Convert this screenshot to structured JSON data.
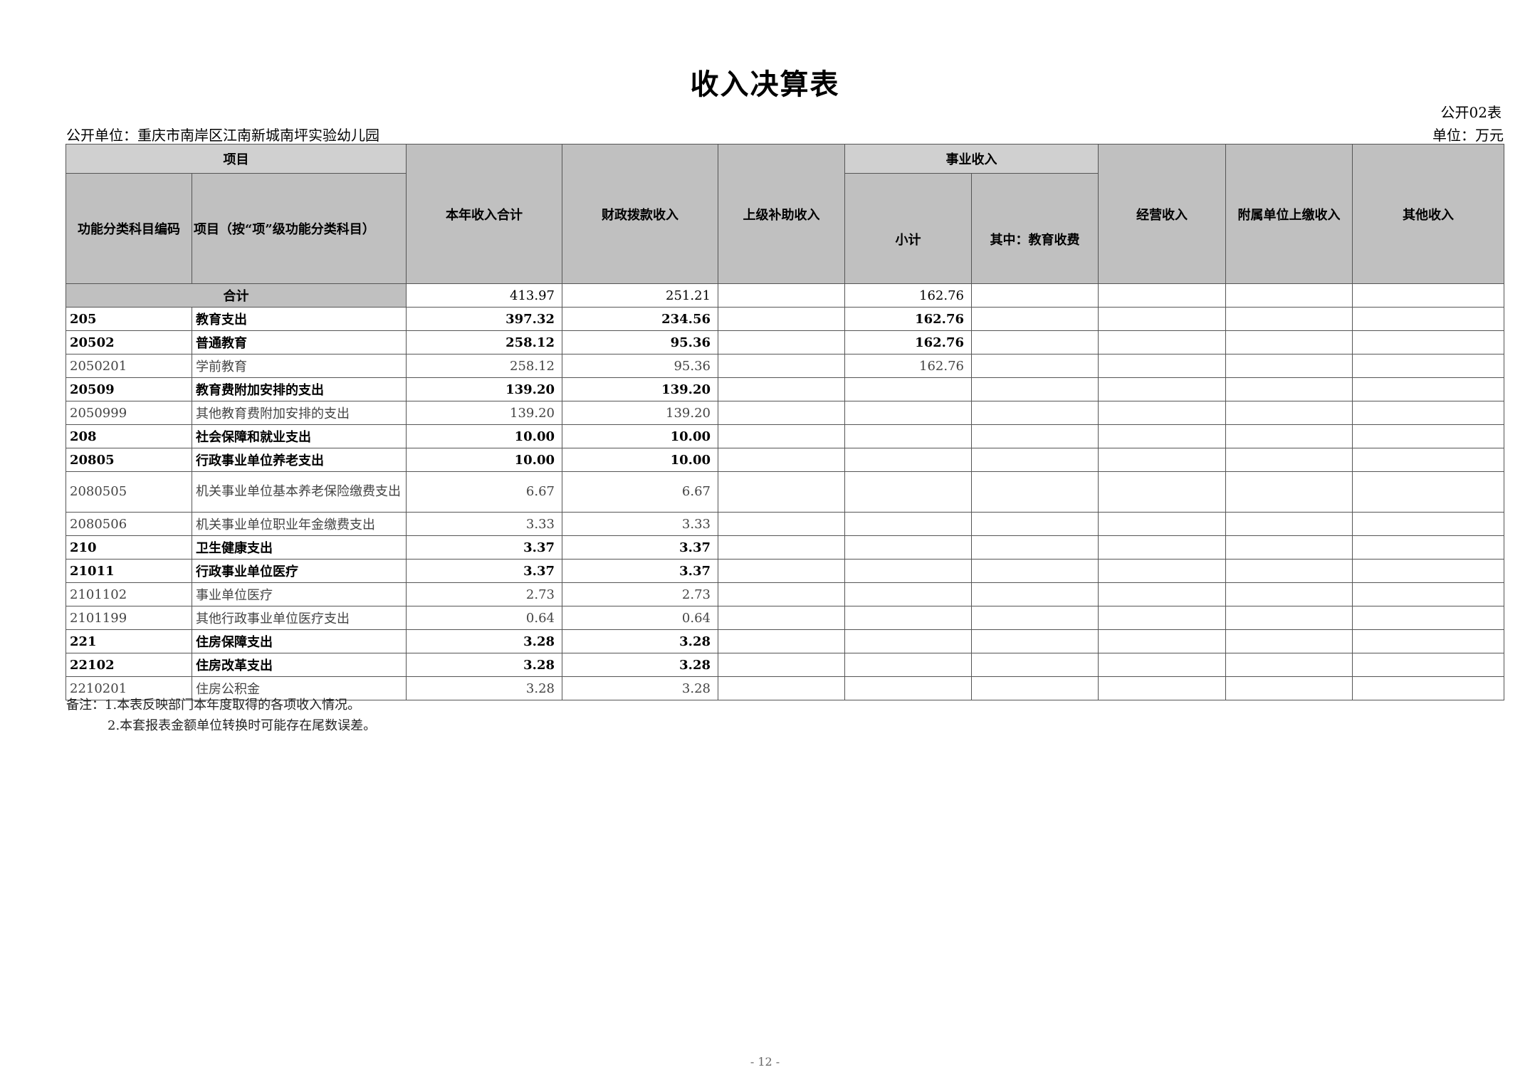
{
  "title": "收入决算表",
  "form_no": "公开02表",
  "org": "公开单位：重庆市南岸区江南新城南坪实验幼儿园",
  "unit": "单位：万元",
  "headers": {
    "item_group": "项目",
    "code": "功能分类科目编码",
    "item_name": "项目（按“项”级功能分类科目）",
    "total": "本年收入合计",
    "fiscal": "财政拨款收入",
    "superior": "上级补助收入",
    "business_group": "事业收入",
    "subtotal": "小计",
    "edu_fee": "其中：教育收费",
    "operating": "经营收入",
    "affiliated": "附属单位上缴收入",
    "other": "其他收入"
  },
  "total_row": {
    "label": "合计",
    "total": "413.97",
    "fiscal": "251.21",
    "superior": "",
    "subtotal": "162.76",
    "edu_fee": "",
    "operating": "",
    "affiliated": "",
    "other": ""
  },
  "rows": [
    {
      "code": "205",
      "name": "教育支出",
      "total": "397.32",
      "fiscal": "234.56",
      "subtotal": "162.76",
      "bold": true
    },
    {
      "code": "20502",
      "name": "普通教育",
      "total": "258.12",
      "fiscal": "95.36",
      "subtotal": "162.76",
      "bold": true
    },
    {
      "code": "2050201",
      "name": "学前教育",
      "total": "258.12",
      "fiscal": "95.36",
      "subtotal": "162.76",
      "bold": false
    },
    {
      "code": "20509",
      "name": "教育费附加安排的支出",
      "total": "139.20",
      "fiscal": "139.20",
      "subtotal": "",
      "bold": true
    },
    {
      "code": "2050999",
      "name": "其他教育费附加安排的支出",
      "total": "139.20",
      "fiscal": "139.20",
      "subtotal": "",
      "bold": false
    },
    {
      "code": "208",
      "name": "社会保障和就业支出",
      "total": "10.00",
      "fiscal": "10.00",
      "subtotal": "",
      "bold": true
    },
    {
      "code": "20805",
      "name": "行政事业单位养老支出",
      "total": "10.00",
      "fiscal": "10.00",
      "subtotal": "",
      "bold": true
    },
    {
      "code": "2080505",
      "name": "机关事业单位基本养老保险缴费支出",
      "total": "6.67",
      "fiscal": "6.67",
      "subtotal": "",
      "bold": false
    },
    {
      "code": "2080506",
      "name": "机关事业单位职业年金缴费支出",
      "total": "3.33",
      "fiscal": "3.33",
      "subtotal": "",
      "bold": false
    },
    {
      "code": "210",
      "name": "卫生健康支出",
      "total": "3.37",
      "fiscal": "3.37",
      "subtotal": "",
      "bold": true
    },
    {
      "code": "21011",
      "name": "行政事业单位医疗",
      "total": "3.37",
      "fiscal": "3.37",
      "subtotal": "",
      "bold": true
    },
    {
      "code": "2101102",
      "name": "事业单位医疗",
      "total": "2.73",
      "fiscal": "2.73",
      "subtotal": "",
      "bold": false
    },
    {
      "code": "2101199",
      "name": "其他行政事业单位医疗支出",
      "total": "0.64",
      "fiscal": "0.64",
      "subtotal": "",
      "bold": false
    },
    {
      "code": "221",
      "name": "住房保障支出",
      "total": "3.28",
      "fiscal": "3.28",
      "subtotal": "",
      "bold": true
    },
    {
      "code": "22102",
      "name": "住房改革支出",
      "total": "3.28",
      "fiscal": "3.28",
      "subtotal": "",
      "bold": true
    },
    {
      "code": "2210201",
      "name": "住房公积金",
      "total": "3.28",
      "fiscal": "3.28",
      "subtotal": "",
      "bold": false
    }
  ],
  "notes": [
    "备注：1.本表反映部门本年度取得的各项收入情况。",
    "2.本套报表金额单位转换时可能存在尾数误差。"
  ],
  "page_number": "- 12 -"
}
